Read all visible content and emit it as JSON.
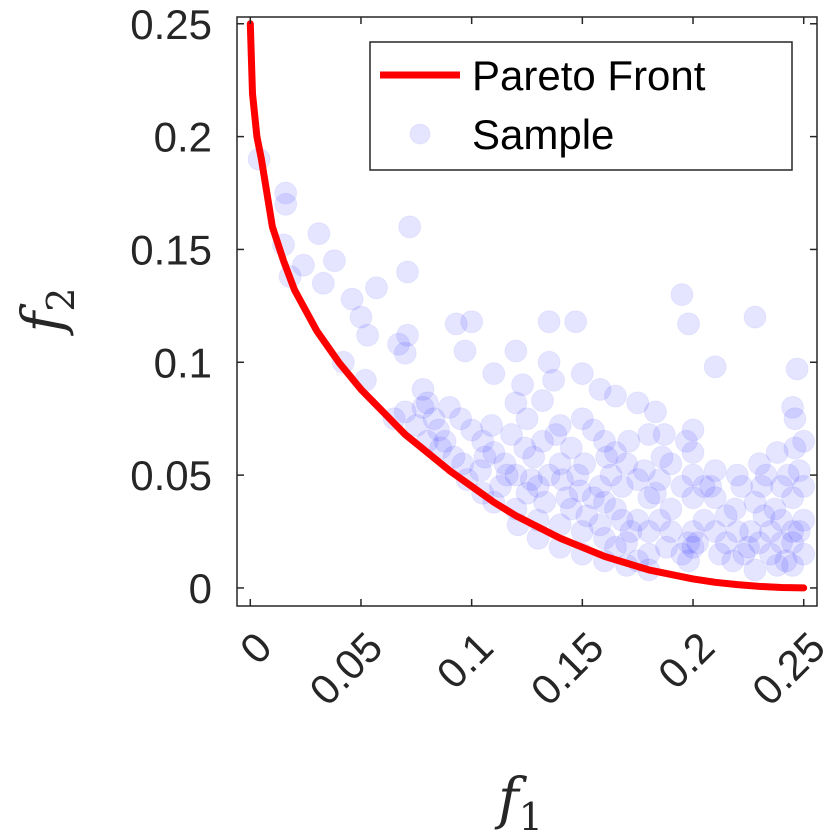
{
  "chart_data": {
    "type": "scatter",
    "xlabel": "f",
    "xlabel_sub": "1",
    "ylabel": "f",
    "ylabel_sub": "2",
    "xlim": [
      -0.006,
      0.256
    ],
    "ylim": [
      -0.008,
      0.253
    ],
    "x_ticks": [
      0,
      0.05,
      0.1,
      0.15,
      0.2,
      0.25
    ],
    "x_tick_labels": [
      "0",
      "0.05",
      "0.1",
      "0.15",
      "0.2",
      "0.25"
    ],
    "y_ticks": [
      0,
      0.05,
      0.1,
      0.15,
      0.2,
      0.25
    ],
    "y_tick_labels": [
      "0",
      "0.05",
      "0.1",
      "0.15",
      "0.2",
      "0.25"
    ],
    "grid": false,
    "legend": {
      "placement": "top-right",
      "entries": [
        "Pareto Front",
        "Sample"
      ]
    },
    "series": [
      {
        "name": "Pareto Front",
        "kind": "line",
        "color": "#ff0000",
        "points": [
          [
            0.0,
            0.25
          ],
          [
            0.001,
            0.219
          ],
          [
            0.003,
            0.2
          ],
          [
            0.005,
            0.19
          ],
          [
            0.008,
            0.172
          ],
          [
            0.01,
            0.16
          ],
          [
            0.015,
            0.145
          ],
          [
            0.02,
            0.132
          ],
          [
            0.03,
            0.114
          ],
          [
            0.04,
            0.1
          ],
          [
            0.05,
            0.088
          ],
          [
            0.06,
            0.078
          ],
          [
            0.07,
            0.068
          ],
          [
            0.08,
            0.06
          ],
          [
            0.09,
            0.052
          ],
          [
            0.1,
            0.045
          ],
          [
            0.11,
            0.038
          ],
          [
            0.12,
            0.032
          ],
          [
            0.13,
            0.027
          ],
          [
            0.14,
            0.022
          ],
          [
            0.15,
            0.018
          ],
          [
            0.16,
            0.014
          ],
          [
            0.17,
            0.011
          ],
          [
            0.18,
            0.008
          ],
          [
            0.19,
            0.006
          ],
          [
            0.2,
            0.004
          ],
          [
            0.21,
            0.0025
          ],
          [
            0.22,
            0.0015
          ],
          [
            0.23,
            0.0007
          ],
          [
            0.24,
            0.0002
          ],
          [
            0.25,
            0.0
          ]
        ]
      },
      {
        "name": "Sample",
        "kind": "scatter",
        "color": "#0000ff",
        "opacity": 0.1,
        "points": [
          [
            0.004,
            0.19
          ],
          [
            0.016,
            0.175
          ],
          [
            0.016,
            0.17
          ],
          [
            0.015,
            0.152
          ],
          [
            0.031,
            0.157
          ],
          [
            0.038,
            0.145
          ],
          [
            0.072,
            0.16
          ],
          [
            0.071,
            0.14
          ],
          [
            0.057,
            0.133
          ],
          [
            0.046,
            0.128
          ],
          [
            0.033,
            0.135
          ],
          [
            0.024,
            0.143
          ],
          [
            0.018,
            0.138
          ],
          [
            0.05,
            0.12
          ],
          [
            0.053,
            0.112
          ],
          [
            0.067,
            0.108
          ],
          [
            0.071,
            0.112
          ],
          [
            0.07,
            0.104
          ],
          [
            0.042,
            0.1
          ],
          [
            0.052,
            0.092
          ],
          [
            0.078,
            0.088
          ],
          [
            0.08,
            0.082
          ],
          [
            0.093,
            0.117
          ],
          [
            0.1,
            0.118
          ],
          [
            0.097,
            0.105
          ],
          [
            0.12,
            0.105
          ],
          [
            0.11,
            0.095
          ],
          [
            0.123,
            0.09
          ],
          [
            0.135,
            0.118
          ],
          [
            0.147,
            0.118
          ],
          [
            0.135,
            0.1
          ],
          [
            0.137,
            0.092
          ],
          [
            0.15,
            0.095
          ],
          [
            0.12,
            0.082
          ],
          [
            0.132,
            0.083
          ],
          [
            0.158,
            0.088
          ],
          [
            0.165,
            0.085
          ],
          [
            0.175,
            0.082
          ],
          [
            0.183,
            0.078
          ],
          [
            0.195,
            0.13
          ],
          [
            0.198,
            0.117
          ],
          [
            0.228,
            0.12
          ],
          [
            0.21,
            0.098
          ],
          [
            0.247,
            0.097
          ],
          [
            0.245,
            0.08
          ],
          [
            0.246,
            0.075
          ],
          [
            0.25,
            0.065
          ],
          [
            0.246,
            0.062
          ],
          [
            0.238,
            0.06
          ],
          [
            0.23,
            0.055
          ],
          [
            0.233,
            0.05
          ],
          [
            0.248,
            0.052
          ],
          [
            0.25,
            0.045
          ],
          [
            0.245,
            0.04
          ],
          [
            0.25,
            0.03
          ],
          [
            0.248,
            0.025
          ],
          [
            0.245,
            0.02
          ],
          [
            0.25,
            0.015
          ],
          [
            0.245,
            0.01
          ],
          [
            0.24,
            0.03
          ],
          [
            0.235,
            0.025
          ],
          [
            0.23,
            0.02
          ],
          [
            0.225,
            0.018
          ],
          [
            0.22,
            0.025
          ],
          [
            0.215,
            0.032
          ],
          [
            0.21,
            0.04
          ],
          [
            0.205,
            0.045
          ],
          [
            0.2,
            0.05
          ],
          [
            0.198,
            0.02
          ],
          [
            0.2,
            0.018
          ],
          [
            0.195,
            0.015
          ],
          [
            0.19,
            0.025
          ],
          [
            0.185,
            0.03
          ],
          [
            0.18,
            0.04
          ],
          [
            0.175,
            0.048
          ],
          [
            0.17,
            0.055
          ],
          [
            0.165,
            0.06
          ],
          [
            0.16,
            0.065
          ],
          [
            0.155,
            0.07
          ],
          [
            0.15,
            0.075
          ],
          [
            0.145,
            0.062
          ],
          [
            0.14,
            0.055
          ],
          [
            0.135,
            0.05
          ],
          [
            0.13,
            0.045
          ],
          [
            0.125,
            0.042
          ],
          [
            0.12,
            0.05
          ],
          [
            0.115,
            0.055
          ],
          [
            0.11,
            0.06
          ],
          [
            0.105,
            0.065
          ],
          [
            0.1,
            0.07
          ],
          [
            0.095,
            0.075
          ],
          [
            0.09,
            0.08
          ],
          [
            0.085,
            0.07
          ],
          [
            0.08,
            0.065
          ],
          [
            0.075,
            0.072
          ],
          [
            0.07,
            0.078
          ],
          [
            0.065,
            0.075
          ],
          [
            0.098,
            0.048
          ],
          [
            0.105,
            0.042
          ],
          [
            0.11,
            0.038
          ],
          [
            0.12,
            0.035
          ],
          [
            0.13,
            0.03
          ],
          [
            0.14,
            0.028
          ],
          [
            0.15,
            0.025
          ],
          [
            0.16,
            0.022
          ],
          [
            0.17,
            0.02
          ],
          [
            0.18,
            0.015
          ],
          [
            0.155,
            0.04
          ],
          [
            0.165,
            0.035
          ],
          [
            0.175,
            0.03
          ],
          [
            0.185,
            0.048
          ],
          [
            0.19,
            0.055
          ],
          [
            0.2,
            0.06
          ],
          [
            0.21,
            0.052
          ],
          [
            0.222,
            0.045
          ],
          [
            0.228,
            0.038
          ],
          [
            0.232,
            0.032
          ],
          [
            0.212,
            0.015
          ],
          [
            0.218,
            0.012
          ],
          [
            0.228,
            0.008
          ],
          [
            0.238,
            0.01
          ],
          [
            0.242,
            0.012
          ],
          [
            0.197,
            0.065
          ],
          [
            0.2,
            0.07
          ],
          [
            0.186,
            0.058
          ],
          [
            0.168,
            0.045
          ],
          [
            0.143,
            0.04
          ],
          [
            0.128,
            0.058
          ],
          [
            0.118,
            0.068
          ],
          [
            0.109,
            0.072
          ],
          [
            0.086,
            0.062
          ],
          [
            0.092,
            0.058
          ],
          [
            0.138,
            0.068
          ],
          [
            0.125,
            0.075
          ],
          [
            0.148,
            0.05
          ],
          [
            0.158,
            0.045
          ],
          [
            0.163,
            0.05
          ],
          [
            0.178,
            0.052
          ],
          [
            0.183,
            0.042
          ],
          [
            0.19,
            0.035
          ],
          [
            0.205,
            0.03
          ],
          [
            0.21,
            0.025
          ],
          [
            0.215,
            0.02
          ],
          [
            0.223,
            0.015
          ],
          [
            0.235,
            0.015
          ],
          [
            0.24,
            0.02
          ],
          [
            0.245,
            0.025
          ],
          [
            0.237,
            0.035
          ],
          [
            0.24,
            0.045
          ],
          [
            0.243,
            0.05
          ],
          [
            0.226,
            0.025
          ],
          [
            0.219,
            0.035
          ],
          [
            0.208,
            0.045
          ],
          [
            0.2,
            0.04
          ],
          [
            0.195,
            0.045
          ],
          [
            0.18,
            0.025
          ],
          [
            0.172,
            0.025
          ],
          [
            0.165,
            0.018
          ],
          [
            0.158,
            0.028
          ],
          [
            0.152,
            0.032
          ],
          [
            0.145,
            0.035
          ],
          [
            0.133,
            0.038
          ],
          [
            0.127,
            0.048
          ],
          [
            0.113,
            0.045
          ],
          [
            0.104,
            0.052
          ],
          [
            0.096,
            0.055
          ],
          [
            0.088,
            0.065
          ],
          [
            0.083,
            0.075
          ],
          [
            0.078,
            0.08
          ],
          [
            0.106,
            0.058
          ],
          [
            0.116,
            0.05
          ],
          [
            0.124,
            0.062
          ],
          [
            0.132,
            0.065
          ],
          [
            0.14,
            0.072
          ],
          [
            0.151,
            0.055
          ],
          [
            0.161,
            0.058
          ],
          [
            0.171,
            0.065
          ],
          [
            0.18,
            0.068
          ],
          [
            0.187,
            0.068
          ],
          [
            0.22,
            0.05
          ],
          [
            0.231,
            0.045
          ],
          [
            0.2,
            0.025
          ],
          [
            0.202,
            0.02
          ],
          [
            0.198,
            0.012
          ],
          [
            0.188,
            0.018
          ],
          [
            0.175,
            0.012
          ],
          [
            0.168,
            0.03
          ],
          [
            0.16,
            0.038
          ],
          [
            0.149,
            0.043
          ],
          [
            0.141,
            0.048
          ],
          [
            0.121,
            0.028
          ],
          [
            0.13,
            0.022
          ],
          [
            0.14,
            0.018
          ],
          [
            0.15,
            0.015
          ],
          [
            0.16,
            0.012
          ],
          [
            0.17,
            0.01
          ],
          [
            0.18,
            0.008
          ]
        ]
      }
    ]
  }
}
